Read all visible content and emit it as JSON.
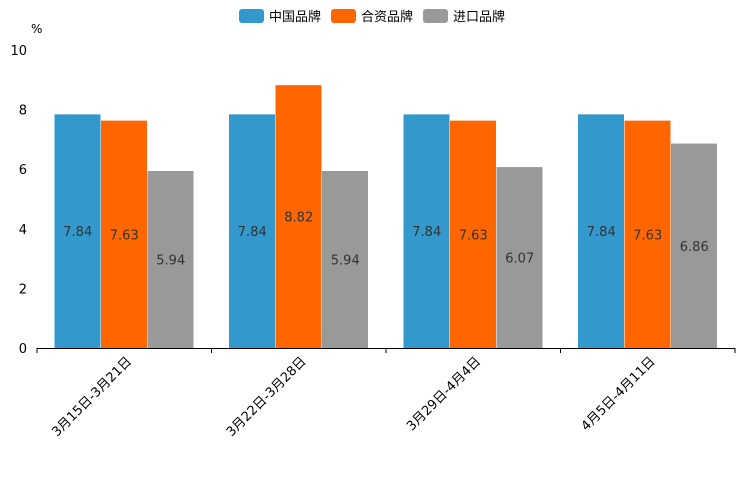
{
  "chart_data": {
    "type": "bar",
    "title": "",
    "unit": "%",
    "xlabel": "",
    "ylabel": "",
    "categories": [
      "3月15日-3月21日",
      "3月22日-3月28日",
      "3月29日-4月4日",
      "4月5日-4月11日"
    ],
    "series": [
      {
        "name": "中国品牌",
        "color": "#3399cc",
        "values": [
          7.84,
          7.84,
          7.84,
          7.84
        ]
      },
      {
        "name": "合资品牌",
        "color": "#ff6600",
        "values": [
          7.63,
          8.82,
          7.63,
          7.63
        ]
      },
      {
        "name": "进口品牌",
        "color": "#999999",
        "values": [
          5.94,
          5.94,
          6.07,
          6.86
        ]
      }
    ],
    "ylim": [
      0,
      10
    ],
    "yticks": [
      0,
      2,
      4,
      6,
      8,
      10
    ],
    "grid": false,
    "legend": "top-center"
  }
}
